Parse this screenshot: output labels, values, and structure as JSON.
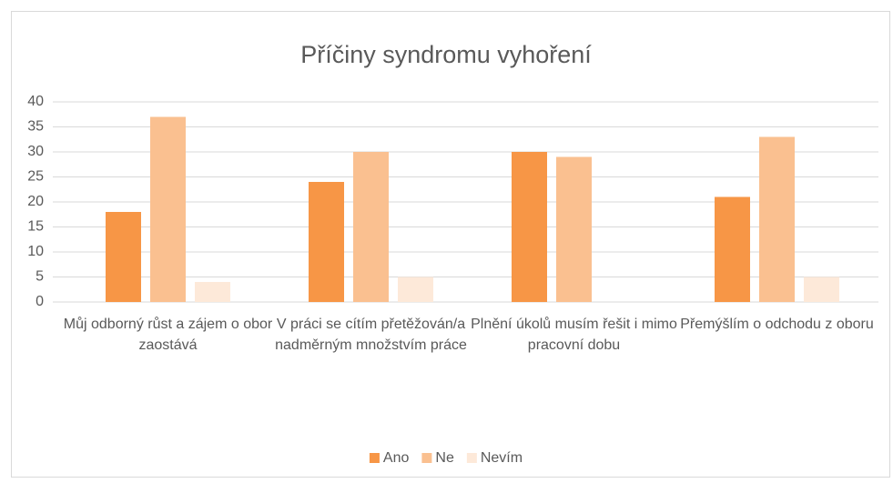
{
  "chart_data": {
    "type": "bar",
    "title": "Příčiny syndromu vyhoření",
    "categories": [
      "Můj odborný růst a zájem o obor zaostává",
      "V práci se cítím přetěžován/a nadměrným množstvím práce",
      "Plnění úkolů musím řešit i mimo pracovní dobu",
      "Přemýšlím o odchodu z oboru"
    ],
    "series": [
      {
        "name": "Ano",
        "color": "#f79646",
        "values": [
          18,
          24,
          30,
          21
        ]
      },
      {
        "name": "Ne",
        "color": "#fac090",
        "values": [
          37,
          30,
          29,
          33
        ]
      },
      {
        "name": "Nevím",
        "color": "#fde9d9",
        "values": [
          4,
          5,
          0,
          5
        ]
      }
    ],
    "ylim": [
      0,
      40
    ],
    "yticks": [
      0,
      5,
      10,
      15,
      20,
      25,
      30,
      35,
      40
    ],
    "grid": true,
    "legend": "bottom"
  }
}
